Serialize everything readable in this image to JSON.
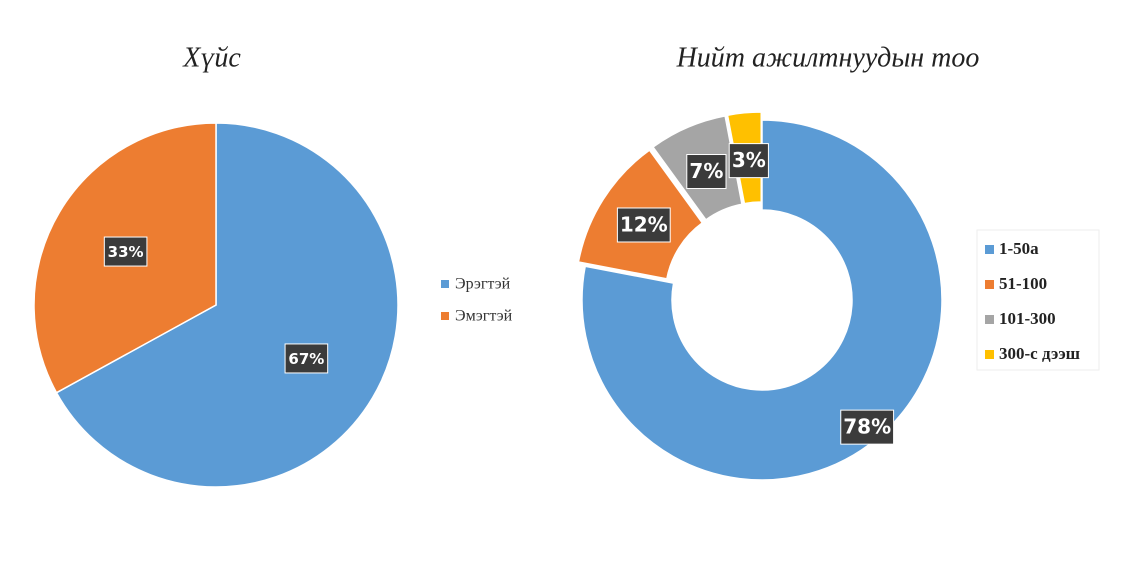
{
  "chart_data": [
    {
      "type": "pie",
      "title": "Хүйс",
      "categories": [
        "Эрэгтэй",
        "Эмэгтэй"
      ],
      "values": [
        67,
        33
      ],
      "value_labels": [
        "67%",
        "33%"
      ],
      "colors": [
        "#5b9bd5",
        "#ed7d31"
      ]
    },
    {
      "type": "donut",
      "title": "Нийт ажилтнуудын тоо",
      "categories": [
        "1-50а",
        "51-100",
        "101-300",
        "300-с дээш"
      ],
      "values": [
        78,
        12,
        7,
        3
      ],
      "value_labels": [
        "78%",
        "12%",
        "7%",
        "3%"
      ],
      "colors": [
        "#5b9bd5",
        "#ed7d31",
        "#a5a5a5",
        "#ffc000"
      ]
    }
  ]
}
